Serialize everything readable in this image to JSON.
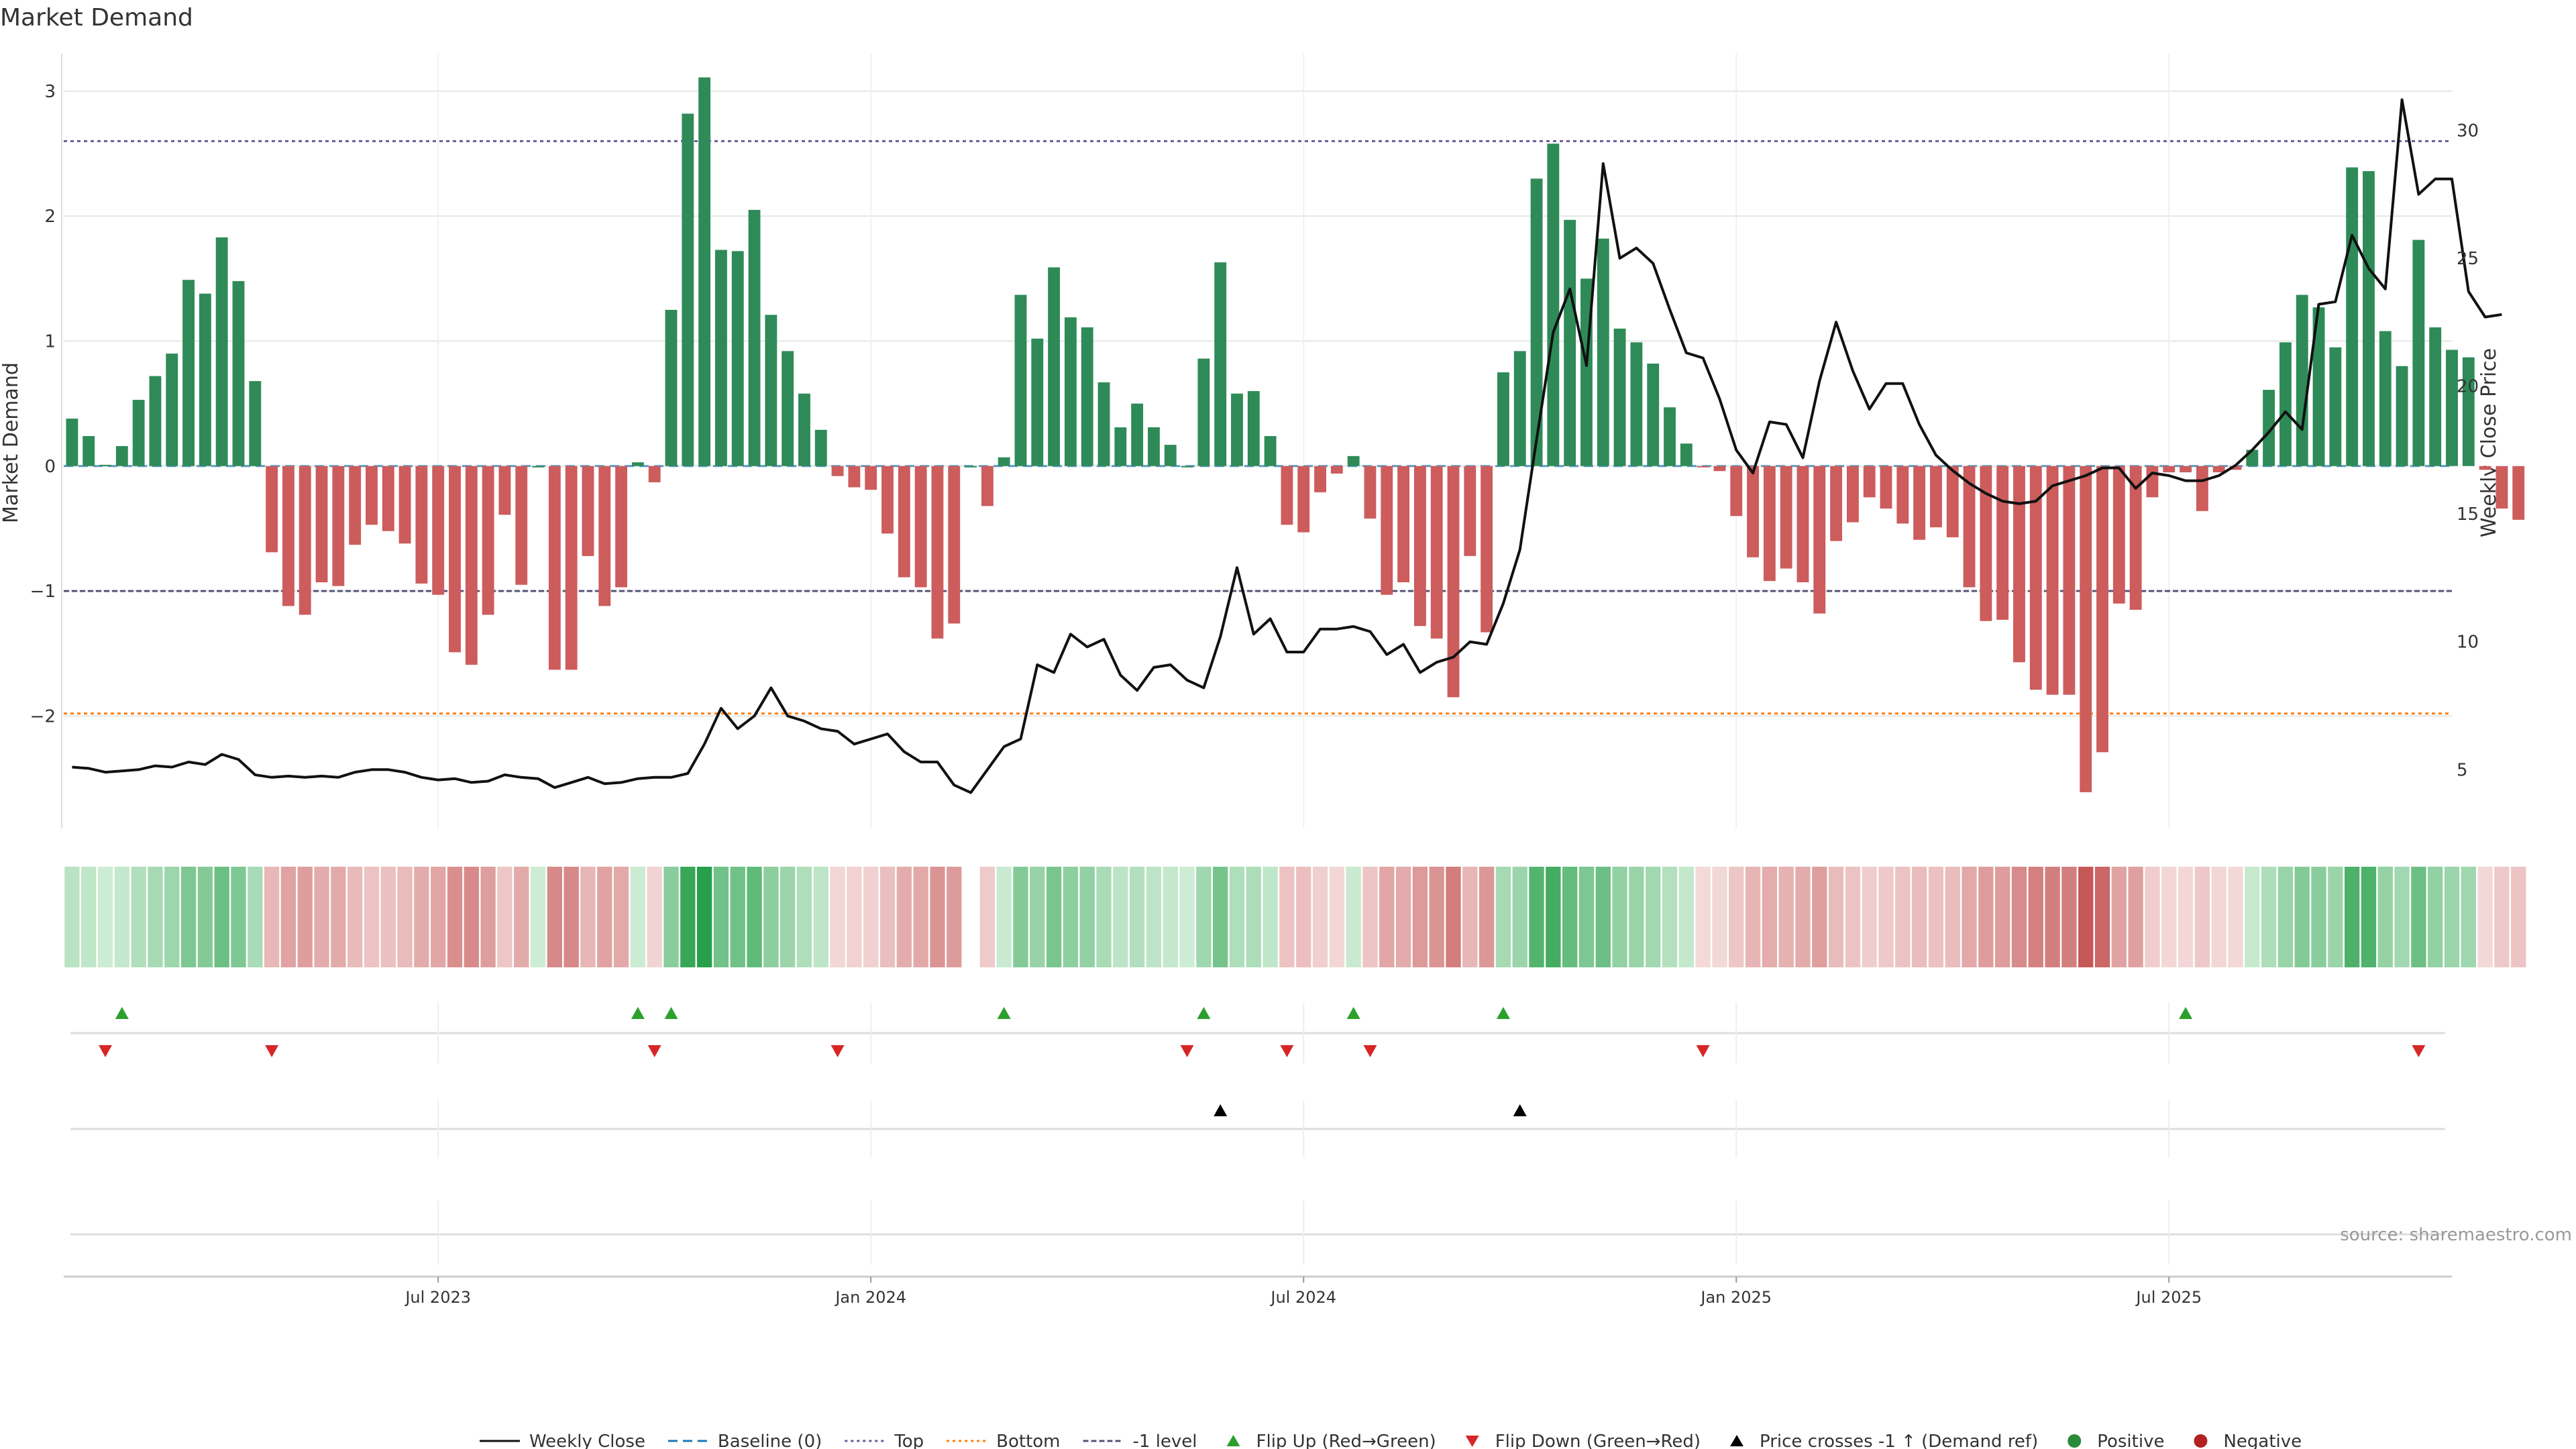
{
  "chart_data": {
    "type": "bar",
    "title": "Market Demand",
    "ylabel": "Market Demand",
    "ylabel_right": "Weekly Close Price",
    "ylim": [
      -2.9,
      3.3
    ],
    "ylim_right": [
      2.7,
      33
    ],
    "y_ticks": [
      -2,
      -1,
      0,
      1,
      2,
      3
    ],
    "y_tick_labels": [
      "−2",
      "−1",
      "0",
      "1",
      "2",
      "3"
    ],
    "y_ticks_right": [
      5,
      10,
      15,
      20,
      25,
      30
    ],
    "x_tick_labels": [
      "Jul 2023",
      "Jan 2024",
      "Jul 2024",
      "Jan 2025",
      "Jul 2025"
    ],
    "x_tick_weeks": [
      22,
      48,
      74,
      100,
      126
    ],
    "weeks": 144,
    "reference_lines": {
      "top": 2.6,
      "minus_one": -1.0,
      "bottom": -1.98
    },
    "demand": [
      0.38,
      0.24,
      0.01,
      0.16,
      0.53,
      0.72,
      0.9,
      1.49,
      1.38,
      1.83,
      1.48,
      0.68,
      -0.69,
      -1.12,
      -1.19,
      -0.93,
      -0.96,
      -0.63,
      -0.47,
      -0.52,
      -0.62,
      -0.94,
      -1.03,
      -1.49,
      -1.59,
      -1.19,
      -0.39,
      -0.95,
      0.0,
      -1.63,
      -1.63,
      -0.72,
      -1.12,
      -0.97,
      0.03,
      -0.13,
      1.25,
      2.82,
      3.11,
      1.73,
      1.72,
      2.05,
      1.21,
      0.92,
      0.58,
      0.29,
      -0.08,
      -0.17,
      -0.19,
      -0.54,
      -0.89,
      -0.97,
      -1.38,
      -1.26,
      0.0,
      -0.32,
      0.07,
      1.37,
      1.02,
      1.59,
      1.19,
      1.11,
      0.67,
      0.31,
      0.5,
      0.31,
      0.17,
      0.0,
      0.86,
      1.63,
      0.58,
      0.6,
      0.24,
      -0.47,
      -0.53,
      -0.21,
      -0.06,
      0.08,
      -0.42,
      -1.03,
      -0.93,
      -1.28,
      -1.38,
      -1.85,
      -0.72,
      -1.33,
      0.75,
      0.92,
      2.3,
      2.58,
      1.97,
      1.5,
      1.82,
      1.1,
      0.99,
      0.82,
      0.47,
      0.18,
      -0.01,
      -0.04,
      -0.4,
      -0.73,
      -0.92,
      -0.82,
      -0.93,
      -1.18,
      -0.6,
      -0.45,
      -0.25,
      -0.34,
      -0.46,
      -0.59,
      -0.49,
      -0.57,
      -0.97,
      -1.24,
      -1.23,
      -1.57,
      -1.79,
      -1.83,
      -1.83,
      -2.61,
      -2.29,
      -1.1,
      -1.15,
      -0.25,
      -0.05,
      -0.05,
      -0.36,
      -0.05,
      -0.03,
      0.13,
      0.61,
      0.99,
      1.37,
      1.27,
      0.95,
      2.39,
      2.36,
      1.08,
      0.8,
      1.81,
      1.11,
      0.93,
      0.87,
      -0.03,
      -0.34,
      -0.43
    ],
    "price": [
      5.1,
      5.05,
      4.9,
      4.95,
      5.0,
      5.15,
      5.1,
      5.3,
      5.2,
      5.6,
      5.4,
      4.8,
      4.7,
      4.75,
      4.7,
      4.75,
      4.7,
      4.9,
      5.0,
      5.0,
      4.9,
      4.7,
      4.6,
      4.65,
      4.5,
      4.55,
      4.8,
      4.7,
      4.65,
      4.3,
      4.5,
      4.7,
      4.45,
      4.5,
      4.65,
      4.7,
      4.7,
      4.85,
      6.0,
      7.4,
      6.6,
      7.1,
      8.2,
      7.1,
      6.9,
      6.6,
      6.5,
      6.0,
      6.2,
      6.4,
      5.7,
      5.3,
      5.3,
      4.4,
      4.1,
      5.0,
      5.9,
      6.2,
      9.1,
      8.8,
      10.3,
      9.8,
      10.1,
      8.7,
      8.1,
      9.0,
      9.1,
      8.5,
      8.2,
      10.2,
      12.9,
      10.3,
      10.9,
      9.6,
      9.6,
      10.5,
      10.5,
      10.6,
      10.4,
      9.5,
      9.9,
      8.8,
      9.2,
      9.4,
      10.0,
      9.9,
      11.5,
      13.6,
      17.9,
      22.1,
      23.8,
      20.8,
      28.7,
      25.0,
      25.4,
      24.8,
      23.0,
      21.3,
      21.1,
      19.5,
      17.5,
      16.6,
      18.6,
      18.5,
      17.2,
      20.2,
      22.5,
      20.6,
      19.1,
      20.1,
      20.1,
      18.5,
      17.3,
      16.7,
      16.2,
      15.8,
      15.5,
      15.4,
      15.5,
      16.1,
      16.3,
      16.5,
      16.8,
      16.8,
      16.0,
      16.6,
      16.5,
      16.3,
      16.3,
      16.5,
      16.9,
      17.5,
      18.2,
      19.0,
      18.3,
      23.2,
      23.3,
      25.9,
      24.6,
      23.8,
      31.2,
      27.5,
      28.1,
      28.1,
      23.7,
      22.7,
      22.8
    ],
    "heat_gaps": [
      54
    ],
    "flip_up_weeks": [
      3,
      34,
      36,
      56,
      68,
      77,
      86,
      127
    ],
    "flip_down_weeks": [
      2,
      12,
      35,
      46,
      67,
      73,
      78,
      98,
      141
    ],
    "price_cross_weeks": [
      69,
      87
    ],
    "source": "source: sharemaestro.com",
    "legend": [
      {
        "label": "Weekly Close",
        "kind": "line",
        "color": "#111111"
      },
      {
        "label": "Baseline (0)",
        "kind": "dash",
        "color": "#1f77b4"
      },
      {
        "label": "Top",
        "kind": "dot",
        "color": "#6a5a9a"
      },
      {
        "label": "Bottom",
        "kind": "dot",
        "color": "#ff7f0e"
      },
      {
        "label": "-1 level",
        "kind": "dash2",
        "color": "#555577"
      },
      {
        "label": "Flip Up (Red→Green)",
        "kind": "tri-up",
        "color": "#2ca02c"
      },
      {
        "label": "Flip Down (Green→Red)",
        "kind": "tri-down",
        "color": "#d62728"
      },
      {
        "label": "Price crosses -1 ↑ (Demand ref)",
        "kind": "tri-up",
        "color": "#000000"
      },
      {
        "label": "Positive",
        "kind": "dot-marker",
        "color": "#2a8a3a"
      },
      {
        "label": "Negative",
        "kind": "dot-marker",
        "color": "#b22222"
      }
    ],
    "colors": {
      "positive": "#2e8b57",
      "negative": "#cd5c5c",
      "price": "#111111",
      "grid": "#e6e6e6"
    }
  }
}
